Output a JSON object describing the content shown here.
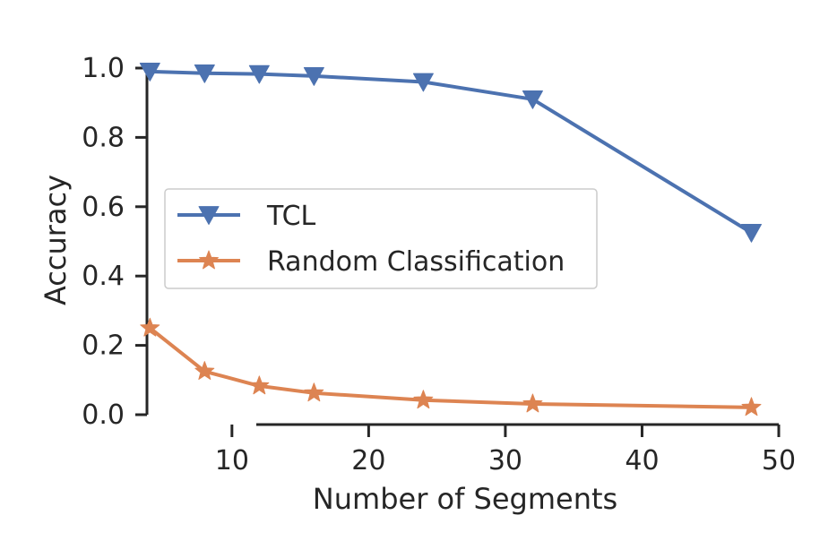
{
  "chart_data": {
    "type": "line",
    "xlabel": "Number of Segments",
    "ylabel": "Accuracy",
    "xlim": [
      2.8,
      50
    ],
    "ylim": [
      0.0,
      1.0
    ],
    "xticks": [
      10,
      20,
      30,
      40,
      50
    ],
    "yticks": [
      0.0,
      0.2,
      0.4,
      0.6,
      0.8,
      1.0
    ],
    "xtick_labels": [
      "10",
      "20",
      "30",
      "40",
      "50"
    ],
    "ytick_labels": [
      "0.0",
      "0.2",
      "0.4",
      "0.6",
      "0.8",
      "1.0"
    ],
    "legend_position": "center-left",
    "series": [
      {
        "name": "TCL",
        "color": "#4c72b0",
        "marker": "triangle-down",
        "x": [
          4,
          8,
          12,
          16,
          24,
          32,
          48
        ],
        "y": [
          0.99,
          0.985,
          0.983,
          0.977,
          0.96,
          0.91,
          0.525
        ]
      },
      {
        "name": "Random Classification",
        "color": "#dd8452",
        "marker": "star",
        "x": [
          4,
          8,
          12,
          16,
          24,
          32,
          48
        ],
        "y": [
          0.25,
          0.125,
          0.083,
          0.0625,
          0.042,
          0.031,
          0.021
        ]
      }
    ]
  }
}
